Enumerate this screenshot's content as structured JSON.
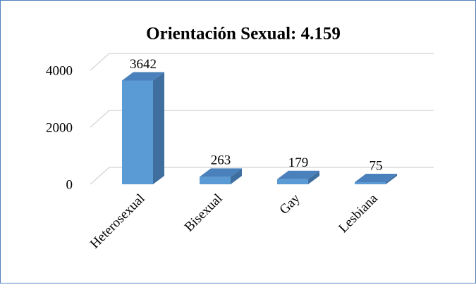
{
  "chart_data": {
    "type": "bar3d",
    "title": "Orientación Sexual: 4.159",
    "categories": [
      "Heterosexual",
      "Bisexual",
      "Gay",
      "Lesbiana"
    ],
    "values": [
      3642,
      263,
      179,
      75
    ],
    "color": "#5b9bd5",
    "ylim": [
      0,
      4000
    ],
    "yticks": [
      0,
      2000,
      4000
    ],
    "grid": true
  }
}
